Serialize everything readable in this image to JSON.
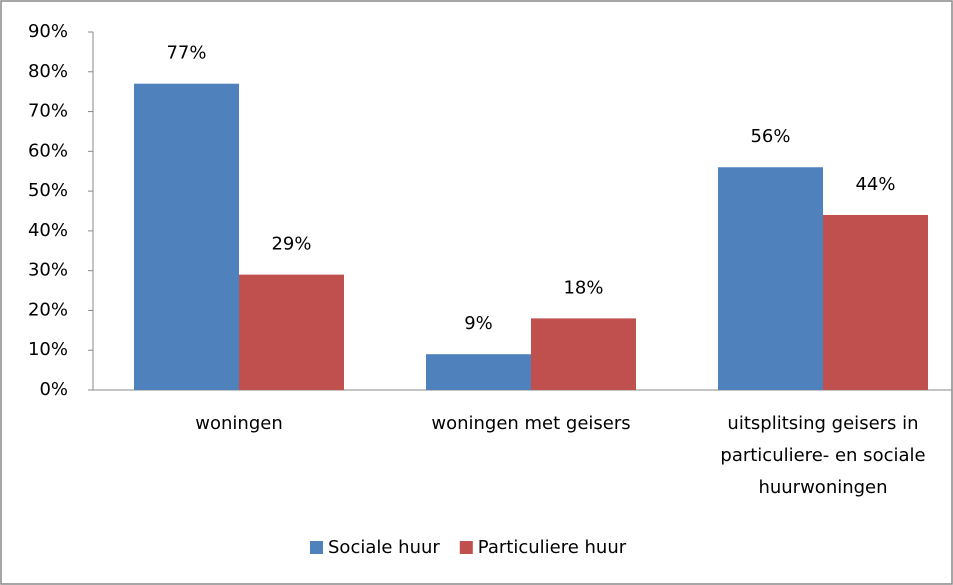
{
  "chart_data": {
    "type": "bar",
    "categories": [
      "woningen",
      "woningen met geisers",
      "uitsplitsing geisers in particuliere- en sociale huurwoningen"
    ],
    "series": [
      {
        "name": "Sociale huur",
        "color": "#4f81bd",
        "values": [
          77,
          9,
          56
        ],
        "value_labels": [
          "77%",
          "9%",
          "56%"
        ]
      },
      {
        "name": "Particuliere huur",
        "color": "#c0504d",
        "values": [
          29,
          18,
          44
        ],
        "value_labels": [
          "29%",
          "18%",
          "44%"
        ]
      }
    ],
    "ylim": [
      0,
      90
    ],
    "yticks": [
      {
        "value": 0,
        "label": "0%"
      },
      {
        "value": 10,
        "label": "10%"
      },
      {
        "value": 20,
        "label": "20%"
      },
      {
        "value": 30,
        "label": "30%"
      },
      {
        "value": 40,
        "label": "40%"
      },
      {
        "value": 50,
        "label": "50%"
      },
      {
        "value": 60,
        "label": "60%"
      },
      {
        "value": 70,
        "label": "70%"
      },
      {
        "value": 80,
        "label": "80%"
      },
      {
        "value": 90,
        "label": "90%"
      }
    ],
    "grid": false,
    "legend": "bottom"
  }
}
